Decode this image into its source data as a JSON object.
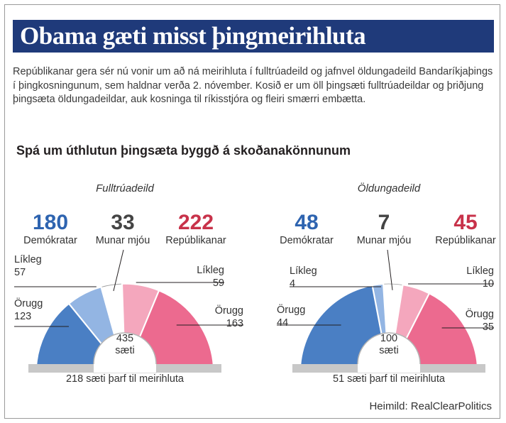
{
  "title": "Obama gæti misst þingmeirihluta",
  "intro": "Repúblikanar gera sér nú vonir um að ná meirihluta í fulltrúadeild og jafnvel öldungadeild Bandaríkjaþings í þingkosningunum, sem haldnar verða 2. nóvember. Kosið er um öll þingsæti fulltrúadeildar og þriðjung þingsæta öldungadeildar, auk kosninga til ríkisstjóra og fleiri smærri embætta.",
  "subtitle": "Spá um úthlutun þingsæta byggð á skoðanakönnunum",
  "source": "Heimild: RealClearPolitics",
  "colors": {
    "title_bg": "#1f3a7a",
    "dem_safe": "#4a7fc4",
    "dem_likely": "#93b5e3",
    "tossup": "#ffffff",
    "rep_likely": "#f4a7bd",
    "rep_safe": "#ec6a8f",
    "dem_number": "#2e64b0",
    "rep_number": "#c8324a",
    "tossup_number": "#444444"
  },
  "chart_data": [
    {
      "type": "parliament-semicircle",
      "title": "Fulltrúadeild",
      "total_seats": 435,
      "total_label": "sæti",
      "majority_note": "218 sæti þarf til meirihluta",
      "headline": [
        {
          "value": 180,
          "label": "Demókratar"
        },
        {
          "value": 33,
          "label": "Munar mjóu"
        },
        {
          "value": 222,
          "label": "Repúblikanar"
        }
      ],
      "segments": [
        {
          "party": "Demókratar",
          "category": "Örugg",
          "value": 123
        },
        {
          "party": "Demókratar",
          "category": "Líkleg",
          "value": 57
        },
        {
          "party": "Munar mjóu",
          "category": "Munar mjóu",
          "value": 33
        },
        {
          "party": "Repúblikanar",
          "category": "Líkleg",
          "value": 59
        },
        {
          "party": "Repúblikanar",
          "category": "Örugg",
          "value": 163
        }
      ]
    },
    {
      "type": "parliament-semicircle",
      "title": "Öldungadeild",
      "total_seats": 100,
      "total_label": "sæti",
      "majority_note": "51 sæti þarf til meirihluta",
      "headline": [
        {
          "value": 48,
          "label": "Demókratar"
        },
        {
          "value": 7,
          "label": "Munar mjóu"
        },
        {
          "value": 45,
          "label": "Repúblikanar"
        }
      ],
      "segments": [
        {
          "party": "Demókratar",
          "category": "Örugg",
          "value": 44
        },
        {
          "party": "Demókratar",
          "category": "Líkleg",
          "value": 4
        },
        {
          "party": "Munar mjóu",
          "category": "Munar mjóu",
          "value": 7
        },
        {
          "party": "Repúblikanar",
          "category": "Líkleg",
          "value": 10
        },
        {
          "party": "Repúblikanar",
          "category": "Örugg",
          "value": 35
        }
      ]
    }
  ]
}
